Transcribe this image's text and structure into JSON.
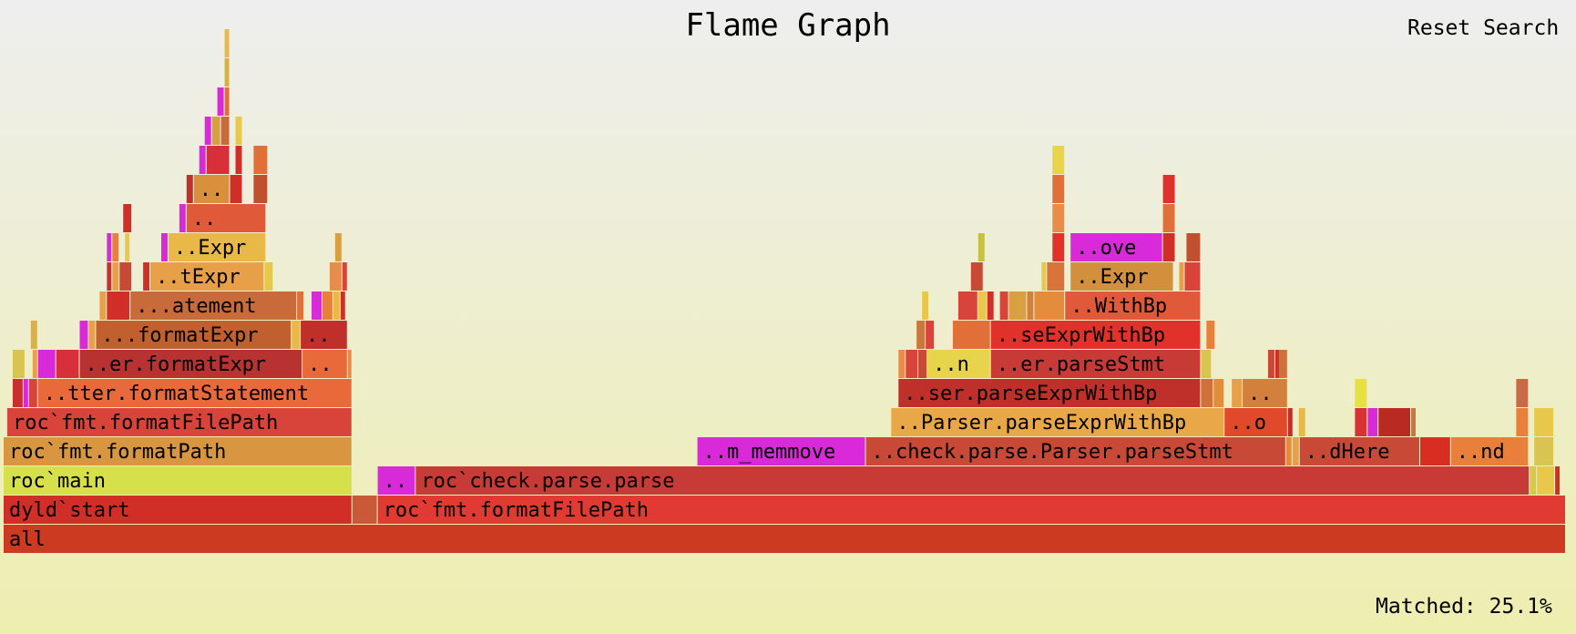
{
  "title": "Flame Graph",
  "reset_search": "Reset Search",
  "matched": "Matched: 25.1%",
  "chart_data": {
    "type": "flame_graph",
    "total": 1730,
    "frames": [
      {
        "name": "all",
        "x": 0,
        "w": 1725,
        "d": 0,
        "c": "#cc3a22"
      },
      {
        "name": "dyld`start",
        "x": 0,
        "w": 385,
        "d": 1,
        "c": "#d22e28"
      },
      {
        "name": "",
        "x": 385,
        "w": 28,
        "d": 1,
        "c": "#c85a3a"
      },
      {
        "name": "roc`fmt.formatFilePath",
        "x": 413,
        "w": 1312,
        "d": 1,
        "c": "#e03a32"
      },
      {
        "name": "roc`main",
        "x": 0,
        "w": 385,
        "d": 2,
        "c": "#d6e04a"
      },
      {
        "name": "..",
        "x": 413,
        "w": 42,
        "d": 2,
        "c": "#d82ad8"
      },
      {
        "name": "roc`check.parse.parse",
        "x": 455,
        "w": 1230,
        "d": 2,
        "c": "#c83a36"
      },
      {
        "name": "",
        "x": 1685,
        "w": 8,
        "d": 2,
        "c": "#d6c84a"
      },
      {
        "name": "",
        "x": 1693,
        "w": 20,
        "d": 2,
        "c": "#e8c84a"
      },
      {
        "name": "",
        "x": 1713,
        "w": 6,
        "d": 2,
        "c": "#d22e28"
      },
      {
        "name": "roc`fmt.formatPath",
        "x": 0,
        "w": 385,
        "d": 3,
        "c": "#d89640"
      },
      {
        "name": "..m_memmove",
        "x": 766,
        "w": 186,
        "d": 3,
        "c": "#d82ad8"
      },
      {
        "name": "..check.parse.Parser.parseStmt",
        "x": 952,
        "w": 464,
        "d": 3,
        "c": "#c84a36"
      },
      {
        "name": "",
        "x": 1416,
        "w": 7,
        "d": 3,
        "c": "#e28c3c"
      },
      {
        "name": "",
        "x": 1423,
        "w": 8,
        "d": 3,
        "c": "#e8a048"
      },
      {
        "name": "..dHere",
        "x": 1431,
        "w": 133,
        "d": 3,
        "c": "#c84a36"
      },
      {
        "name": "",
        "x": 1564,
        "w": 34,
        "d": 3,
        "c": "#d82e22"
      },
      {
        "name": "..nd",
        "x": 1598,
        "w": 86,
        "d": 3,
        "c": "#e8803c"
      },
      {
        "name": "",
        "x": 1690,
        "w": 22,
        "d": 3,
        "c": "#d8c450"
      },
      {
        "name": "roc`fmt.formatFilePath",
        "x": 4,
        "w": 381,
        "d": 4,
        "c": "#d8443a"
      },
      {
        "name": "..Parser.parseExprWithBp",
        "x": 980,
        "w": 368,
        "d": 4,
        "c": "#e8a848"
      },
      {
        "name": "..o",
        "x": 1348,
        "w": 70,
        "d": 4,
        "c": "#e04a2a"
      },
      {
        "name": "",
        "x": 1418,
        "w": 6,
        "d": 4,
        "c": "#c0302a"
      },
      {
        "name": "",
        "x": 1430,
        "w": 8,
        "d": 4,
        "c": "#e8b848"
      },
      {
        "name": "",
        "x": 1492,
        "w": 14,
        "d": 4,
        "c": "#d83236"
      },
      {
        "name": "",
        "x": 1506,
        "w": 12,
        "d": 4,
        "c": "#d82ad8"
      },
      {
        "name": "",
        "x": 1518,
        "w": 36,
        "d": 4,
        "c": "#b82a22"
      },
      {
        "name": "",
        "x": 1554,
        "w": 6,
        "d": 4,
        "c": "#c8783c"
      },
      {
        "name": "",
        "x": 1670,
        "w": 14,
        "d": 4,
        "c": "#e8803c"
      },
      {
        "name": "",
        "x": 1690,
        "w": 22,
        "d": 4,
        "c": "#e8c84a"
      },
      {
        "name": "",
        "x": 10,
        "w": 12,
        "d": 5,
        "c": "#c83030"
      },
      {
        "name": "",
        "x": 22,
        "w": 6,
        "d": 5,
        "c": "#d82ad8"
      },
      {
        "name": "",
        "x": 28,
        "w": 10,
        "d": 5,
        "c": "#d8443a"
      },
      {
        "name": "..tter.formatStatement",
        "x": 38,
        "w": 347,
        "d": 5,
        "c": "#e86a3a"
      },
      {
        "name": "..ser.parseExprWithBp",
        "x": 988,
        "w": 334,
        "d": 5,
        "c": "#c0302a"
      },
      {
        "name": "",
        "x": 1322,
        "w": 14,
        "d": 5,
        "c": "#d0703a"
      },
      {
        "name": "",
        "x": 1336,
        "w": 12,
        "d": 5,
        "c": "#e28c3c"
      },
      {
        "name": "",
        "x": 1356,
        "w": 12,
        "d": 5,
        "c": "#e8a048"
      },
      {
        "name": "..",
        "x": 1368,
        "w": 50,
        "d": 5,
        "c": "#d2803c"
      },
      {
        "name": "",
        "x": 1492,
        "w": 14,
        "d": 5,
        "c": "#e8e040"
      },
      {
        "name": "",
        "x": 1670,
        "w": 14,
        "d": 5,
        "c": "#c86a46"
      },
      {
        "name": "",
        "x": 10,
        "w": 14,
        "d": 6,
        "c": "#d8c450"
      },
      {
        "name": "",
        "x": 32,
        "w": 6,
        "d": 6,
        "c": "#e8a048"
      },
      {
        "name": "",
        "x": 38,
        "w": 20,
        "d": 6,
        "c": "#d82ad8"
      },
      {
        "name": "",
        "x": 58,
        "w": 26,
        "d": 6,
        "c": "#d8303a"
      },
      {
        "name": "..er.formatExpr",
        "x": 84,
        "w": 246,
        "d": 6,
        "c": "#b83232"
      },
      {
        "name": "..",
        "x": 330,
        "w": 50,
        "d": 6,
        "c": "#e86a3a"
      },
      {
        "name": "",
        "x": 380,
        "w": 5,
        "d": 6,
        "c": "#e88c4a"
      },
      {
        "name": "",
        "x": 988,
        "w": 8,
        "d": 6,
        "c": "#e88c4a"
      },
      {
        "name": "",
        "x": 996,
        "w": 14,
        "d": 6,
        "c": "#d8443a"
      },
      {
        "name": "",
        "x": 1010,
        "w": 10,
        "d": 6,
        "c": "#d82e22"
      },
      {
        "name": "",
        "x": 1010,
        "w": 10,
        "d": 6,
        "c": "#c84a36"
      },
      {
        "name": "..n",
        "x": 1020,
        "w": 70,
        "d": 6,
        "c": "#e8d44a"
      },
      {
        "name": "..er.parseStmt",
        "x": 1090,
        "w": 232,
        "d": 6,
        "c": "#c83a36"
      },
      {
        "name": "",
        "x": 1322,
        "w": 12,
        "d": 6,
        "c": "#d8c450"
      },
      {
        "name": "",
        "x": 1396,
        "w": 8,
        "d": 6,
        "c": "#c84a36"
      },
      {
        "name": "",
        "x": 1404,
        "w": 6,
        "d": 6,
        "c": "#d22e28"
      },
      {
        "name": "",
        "x": 1408,
        "w": 10,
        "d": 6,
        "c": "#d0703a"
      },
      {
        "name": "",
        "x": 30,
        "w": 8,
        "d": 7,
        "c": "#d8b050"
      },
      {
        "name": "",
        "x": 84,
        "w": 10,
        "d": 7,
        "c": "#d82ad8"
      },
      {
        "name": "",
        "x": 94,
        "w": 8,
        "d": 7,
        "c": "#e8a048"
      },
      {
        "name": "...formatExpr",
        "x": 102,
        "w": 216,
        "d": 7,
        "c": "#c0602e"
      },
      {
        "name": "",
        "x": 318,
        "w": 10,
        "d": 7,
        "c": "#e8b848"
      },
      {
        "name": "..",
        "x": 328,
        "w": 52,
        "d": 7,
        "c": "#c0302a"
      },
      {
        "name": "",
        "x": 1008,
        "w": 10,
        "d": 7,
        "c": "#c8783c"
      },
      {
        "name": "",
        "x": 1018,
        "w": 10,
        "d": 7,
        "c": "#d8443a"
      },
      {
        "name": "",
        "x": 1048,
        "w": 42,
        "d": 7,
        "c": "#e07038"
      },
      {
        "name": "..seExprWithBp",
        "x": 1090,
        "w": 232,
        "d": 7,
        "c": "#e0322a"
      },
      {
        "name": "",
        "x": 1328,
        "w": 10,
        "d": 7,
        "c": "#e8803c"
      },
      {
        "name": "",
        "x": 106,
        "w": 8,
        "d": 8,
        "c": "#e8a048"
      },
      {
        "name": "",
        "x": 114,
        "w": 26,
        "d": 8,
        "c": "#d22e28"
      },
      {
        "name": "...atement",
        "x": 140,
        "w": 184,
        "d": 8,
        "c": "#c86a3a"
      },
      {
        "name": "",
        "x": 324,
        "w": 8,
        "d": 8,
        "c": "#e07038"
      },
      {
        "name": "",
        "x": 340,
        "w": 12,
        "d": 8,
        "c": "#d82ad8"
      },
      {
        "name": "",
        "x": 352,
        "w": 12,
        "d": 8,
        "c": "#e8803c"
      },
      {
        "name": "",
        "x": 364,
        "w": 8,
        "d": 8,
        "c": "#e8b848"
      },
      {
        "name": "",
        "x": 372,
        "w": 6,
        "d": 8,
        "c": "#d22e28"
      },
      {
        "name": "",
        "x": 1014,
        "w": 8,
        "d": 8,
        "c": "#e8c84a"
      },
      {
        "name": "",
        "x": 1054,
        "w": 22,
        "d": 8,
        "c": "#d8443a"
      },
      {
        "name": "",
        "x": 1076,
        "w": 10,
        "d": 8,
        "c": "#e8c84a"
      },
      {
        "name": "",
        "x": 1086,
        "w": 8,
        "d": 8,
        "c": "#d22e28"
      },
      {
        "name": "",
        "x": 1100,
        "w": 10,
        "d": 8,
        "c": "#d8443a"
      },
      {
        "name": "",
        "x": 1110,
        "w": 20,
        "d": 8,
        "c": "#d8a040"
      },
      {
        "name": "",
        "x": 1130,
        "w": 8,
        "d": 8,
        "c": "#d2803c"
      },
      {
        "name": "",
        "x": 1138,
        "w": 34,
        "d": 8,
        "c": "#e28c3c"
      },
      {
        "name": "..WithBp",
        "x": 1172,
        "w": 150,
        "d": 8,
        "c": "#e05a3a"
      },
      {
        "name": "",
        "x": 114,
        "w": 6,
        "d": 9,
        "c": "#c83030"
      },
      {
        "name": "",
        "x": 120,
        "w": 8,
        "d": 9,
        "c": "#e8a048"
      },
      {
        "name": "",
        "x": 128,
        "w": 14,
        "d": 9,
        "c": "#c84a36"
      },
      {
        "name": "",
        "x": 154,
        "w": 8,
        "d": 9,
        "c": "#d22e28"
      },
      {
        "name": "..tExpr",
        "x": 162,
        "w": 126,
        "d": 9,
        "c": "#e8a048"
      },
      {
        "name": "",
        "x": 288,
        "w": 10,
        "d": 9,
        "c": "#e8c84a"
      },
      {
        "name": "",
        "x": 360,
        "w": 14,
        "d": 9,
        "c": "#e88c4a"
      },
      {
        "name": "",
        "x": 374,
        "w": 6,
        "d": 9,
        "c": "#d8443a"
      },
      {
        "name": "",
        "x": 1068,
        "w": 14,
        "d": 9,
        "c": "#c84a36"
      },
      {
        "name": "",
        "x": 1146,
        "w": 6,
        "d": 9,
        "c": "#e8c84a"
      },
      {
        "name": "",
        "x": 1152,
        "w": 20,
        "d": 9,
        "c": "#d8743a"
      },
      {
        "name": "..Expr",
        "x": 1178,
        "w": 114,
        "d": 9,
        "c": "#d2903c"
      },
      {
        "name": "",
        "x": 1298,
        "w": 6,
        "d": 9,
        "c": "#e8a048"
      },
      {
        "name": "",
        "x": 1304,
        "w": 18,
        "d": 9,
        "c": "#d8443a"
      },
      {
        "name": "",
        "x": 114,
        "w": 6,
        "d": 10,
        "c": "#d82ad8"
      },
      {
        "name": "",
        "x": 120,
        "w": 8,
        "d": 10,
        "c": "#e8803c"
      },
      {
        "name": "",
        "x": 134,
        "w": 6,
        "d": 10,
        "c": "#e8c84a"
      },
      {
        "name": "",
        "x": 174,
        "w": 8,
        "d": 10,
        "c": "#d82ad8"
      },
      {
        "name": "..Expr",
        "x": 182,
        "w": 108,
        "d": 10,
        "c": "#e8b848"
      },
      {
        "name": "",
        "x": 366,
        "w": 8,
        "d": 10,
        "c": "#d8a040"
      },
      {
        "name": "",
        "x": 1076,
        "w": 8,
        "d": 10,
        "c": "#c8c040"
      },
      {
        "name": "",
        "x": 1158,
        "w": 14,
        "d": 10,
        "c": "#e0322a"
      },
      {
        "name": "..ove",
        "x": 1178,
        "w": 102,
        "d": 10,
        "c": "#d82ad8"
      },
      {
        "name": "",
        "x": 1280,
        "w": 14,
        "d": 10,
        "c": "#d22e28"
      },
      {
        "name": "",
        "x": 1306,
        "w": 16,
        "d": 10,
        "c": "#c0502e"
      },
      {
        "name": "",
        "x": 132,
        "w": 10,
        "d": 11,
        "c": "#d22e28"
      },
      {
        "name": "",
        "x": 194,
        "w": 8,
        "d": 11,
        "c": "#d82ad8"
      },
      {
        "name": "..",
        "x": 202,
        "w": 88,
        "d": 11,
        "c": "#e05a3a"
      },
      {
        "name": "",
        "x": 1158,
        "w": 14,
        "d": 11,
        "c": "#e88c4a"
      },
      {
        "name": "",
        "x": 1280,
        "w": 14,
        "d": 11,
        "c": "#e07038"
      },
      {
        "name": "",
        "x": 202,
        "w": 8,
        "d": 12,
        "c": "#c0302a"
      },
      {
        "name": "..",
        "x": 210,
        "w": 40,
        "d": 12,
        "c": "#d8903c"
      },
      {
        "name": "",
        "x": 250,
        "w": 14,
        "d": 12,
        "c": "#d22e28"
      },
      {
        "name": "",
        "x": 276,
        "w": 16,
        "d": 12,
        "c": "#c0502e"
      },
      {
        "name": "",
        "x": 1158,
        "w": 14,
        "d": 12,
        "c": "#e07038"
      },
      {
        "name": "",
        "x": 1280,
        "w": 14,
        "d": 12,
        "c": "#e0322a"
      },
      {
        "name": "",
        "x": 216,
        "w": 8,
        "d": 13,
        "c": "#d82ad8"
      },
      {
        "name": "",
        "x": 224,
        "w": 26,
        "d": 13,
        "c": "#d8303a"
      },
      {
        "name": "",
        "x": 256,
        "w": 8,
        "d": 13,
        "c": "#d22e28"
      },
      {
        "name": "",
        "x": 276,
        "w": 16,
        "d": 13,
        "c": "#e07038"
      },
      {
        "name": "",
        "x": 1158,
        "w": 14,
        "d": 13,
        "c": "#e8d44a"
      },
      {
        "name": "",
        "x": 222,
        "w": 8,
        "d": 14,
        "c": "#d82ad8"
      },
      {
        "name": "",
        "x": 230,
        "w": 10,
        "d": 14,
        "c": "#d8a040"
      },
      {
        "name": "",
        "x": 240,
        "w": 10,
        "d": 14,
        "c": "#c86a3a"
      },
      {
        "name": "",
        "x": 256,
        "w": 8,
        "d": 14,
        "c": "#e8c84a"
      },
      {
        "name": "",
        "x": 236,
        "w": 8,
        "d": 15,
        "c": "#d82ad8"
      },
      {
        "name": "",
        "x": 244,
        "w": 6,
        "d": 15,
        "c": "#e07038"
      },
      {
        "name": "",
        "x": 244,
        "w": 6,
        "d": 16,
        "c": "#d8b040"
      },
      {
        "name": "",
        "x": 244,
        "w": 6,
        "d": 17,
        "c": "#e8b848"
      }
    ]
  }
}
